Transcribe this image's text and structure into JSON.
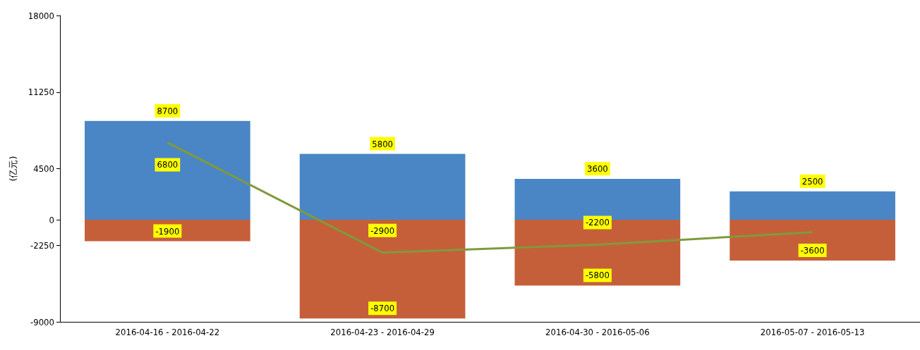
{
  "chart_data": {
    "type": "bar",
    "ylabel": "(亿元)",
    "categories": [
      "2016-04-16 - 2016-04-22",
      "2016-04-23 - 2016-04-29",
      "2016-04-30 - 2016-05-06",
      "2016-05-07 - 2016-05-13"
    ],
    "series": [
      {
        "color": "#4a86c5",
        "values": [
          8700,
          5800,
          3600,
          2500
        ],
        "value_labels": [
          "8700",
          "5800",
          "3600",
          "2500"
        ]
      },
      {
        "color": "#c55f3a",
        "values": [
          -1900,
          -8700,
          -5800,
          -3600
        ],
        "value_labels": [
          "-1900",
          "-8700",
          "-5800",
          "-3600"
        ]
      },
      {
        "type": "line",
        "color": "#7f9a3c",
        "values": [
          6800,
          -2900,
          -2200,
          -1100
        ],
        "value_labels": [
          "6800",
          "-2900",
          "-2200",
          null
        ]
      }
    ],
    "stacked": true,
    "ylim": [
      -9000,
      18000
    ],
    "yticks": [
      -9000,
      -2250,
      0,
      4500,
      11250,
      18000
    ],
    "grid": false,
    "marker": "none",
    "line_style": "solid"
  }
}
